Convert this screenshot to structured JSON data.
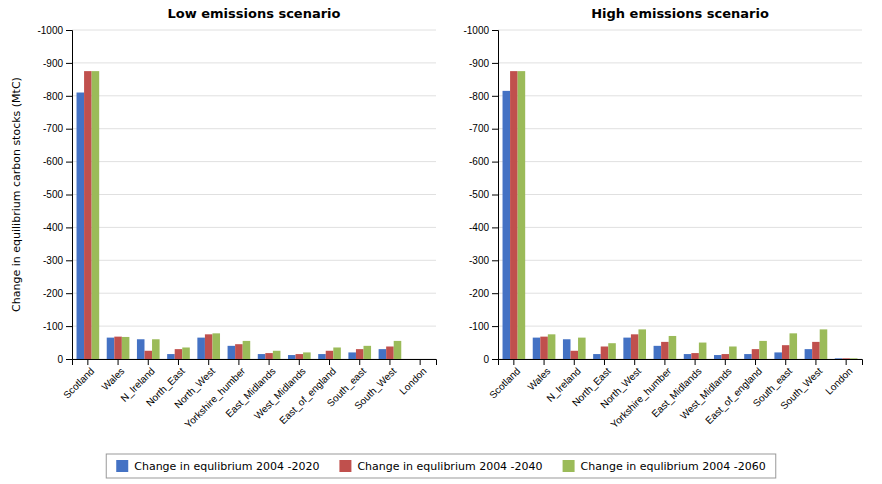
{
  "chart_data": [
    {
      "type": "bar",
      "title": "Low emissions scenario",
      "y_label": "Change in equilibrium carbon stocks (MtC)",
      "categories": [
        "Scotland",
        "Wales",
        "N_Ireland",
        "North_East",
        "North_West",
        "Yorkshire_humber",
        "East_Midlands",
        "West_Midlands",
        "East_of_england",
        "South_east",
        "South_West",
        "London"
      ],
      "series": [
        {
          "name": "Change in equlibrium 2004 -2020",
          "color": "#4472C4",
          "values": [
            -810,
            -65,
            -60,
            -15,
            -65,
            -40,
            -15,
            -12,
            -15,
            -20,
            -30,
            0
          ]
        },
        {
          "name": "Change in equlibrium 2004 -2040",
          "color": "#C0504D",
          "values": [
            -875,
            -68,
            -25,
            -30,
            -75,
            -45,
            -18,
            -15,
            -25,
            -30,
            -38,
            0
          ]
        },
        {
          "name": "Change in equlibrium 2004 -2060",
          "color": "#9BBB59",
          "values": [
            -875,
            -67,
            -60,
            -35,
            -78,
            -55,
            -25,
            -20,
            -35,
            -40,
            -55,
            0
          ]
        }
      ],
      "ylim": [
        0,
        -1000
      ],
      "yticks": [
        -1000,
        -900,
        -800,
        -700,
        -600,
        -500,
        -400,
        -300,
        -200,
        -100,
        0
      ],
      "grid": true,
      "legend": "bottom"
    },
    {
      "type": "bar",
      "title": "High emissions scenario",
      "categories": [
        "Scotland",
        "Wales",
        "N_Ireland",
        "North_East",
        "North_West",
        "Yorkshire_humber",
        "East_Midlands",
        "West_Midlands",
        "East_of_england",
        "South_east",
        "South_West",
        "London"
      ],
      "series": [
        {
          "name": "Change in equlibrium 2004 -2020",
          "color": "#4472C4",
          "values": [
            -815,
            -65,
            -60,
            -15,
            -65,
            -40,
            -15,
            -12,
            -15,
            -20,
            -30,
            -2
          ]
        },
        {
          "name": "Change in equlibrium 2004 -2040",
          "color": "#C0504D",
          "values": [
            -875,
            -68,
            -25,
            -38,
            -75,
            -52,
            -18,
            -15,
            -30,
            -42,
            -52,
            -2
          ]
        },
        {
          "name": "Change in equlibrium 2004 -2060",
          "color": "#9BBB59",
          "values": [
            -875,
            -75,
            -65,
            -48,
            -90,
            -70,
            -50,
            -38,
            -55,
            -78,
            -90,
            -2
          ]
        }
      ],
      "ylim": [
        0,
        -1000
      ],
      "yticks": [
        -1000,
        -900,
        -800,
        -700,
        -600,
        -500,
        -400,
        -300,
        -200,
        -100,
        0
      ],
      "grid": true
    }
  ]
}
